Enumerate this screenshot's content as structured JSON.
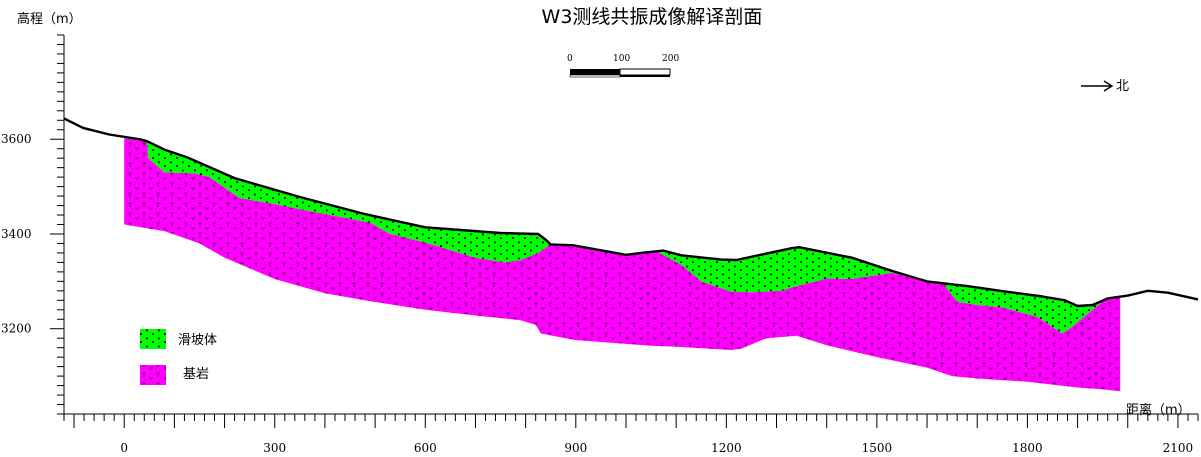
{
  "title": "W3测线共振成像解译剖面",
  "y_axis_label": "高程（m）",
  "x_axis_label": "距离（m）",
  "north_label": "北",
  "scale_bar": {
    "labels": [
      "0",
      "100",
      "200"
    ]
  },
  "legend": {
    "landslide_label": "滑坡体",
    "bedrock_label": "基岩",
    "landslide_color": "#00ff00",
    "bedrock_color": "#ff00ff"
  },
  "chart_data": {
    "type": "area",
    "title": "W3测线共振成像解译剖面",
    "xlabel": "距离（m）",
    "ylabel": "高程（m）",
    "xlim": [
      -120,
      2140
    ],
    "ylim": [
      3020,
      3820
    ],
    "x_ticks": [
      0,
      300,
      600,
      900,
      1200,
      1500,
      1800,
      2100
    ],
    "y_ticks": [
      3200,
      3400,
      3600
    ],
    "grid": false,
    "legend_position": "bottom-left",
    "colors": {
      "landslide": "#00ff00",
      "bedrock": "#ff00ff",
      "surface": "#000000"
    },
    "surface": [
      [
        -120,
        3644
      ],
      [
        -82,
        3624
      ],
      [
        -30,
        3610
      ],
      [
        30,
        3600
      ],
      [
        45,
        3596
      ],
      [
        80,
        3578
      ],
      [
        125,
        3562
      ],
      [
        220,
        3518
      ],
      [
        350,
        3478
      ],
      [
        480,
        3442
      ],
      [
        600,
        3414
      ],
      [
        750,
        3402
      ],
      [
        825,
        3400
      ],
      [
        840,
        3388
      ],
      [
        850,
        3378
      ],
      [
        895,
        3376
      ],
      [
        1000,
        3356
      ],
      [
        1030,
        3360
      ],
      [
        1075,
        3365
      ],
      [
        1110,
        3355
      ],
      [
        1190,
        3346
      ],
      [
        1220,
        3345
      ],
      [
        1330,
        3370
      ],
      [
        1345,
        3372
      ],
      [
        1450,
        3350
      ],
      [
        1530,
        3322
      ],
      [
        1600,
        3300
      ],
      [
        1680,
        3290
      ],
      [
        1760,
        3278
      ],
      [
        1830,
        3268
      ],
      [
        1875,
        3260
      ],
      [
        1900,
        3248
      ],
      [
        1930,
        3250
      ],
      [
        1960,
        3264
      ],
      [
        2000,
        3270
      ],
      [
        2040,
        3280
      ],
      [
        2080,
        3276
      ],
      [
        2140,
        3262
      ]
    ],
    "bedrock": [
      [
        0,
        3602
      ],
      [
        45,
        3596
      ],
      [
        48,
        3560
      ],
      [
        80,
        3530
      ],
      [
        140,
        3528
      ],
      [
        170,
        3520
      ],
      [
        230,
        3476
      ],
      [
        300,
        3463
      ],
      [
        360,
        3450
      ],
      [
        490,
        3424
      ],
      [
        530,
        3400
      ],
      [
        600,
        3382
      ],
      [
        700,
        3350
      ],
      [
        760,
        3340
      ],
      [
        790,
        3345
      ],
      [
        825,
        3360
      ],
      [
        850,
        3378
      ],
      [
        895,
        3376
      ],
      [
        1000,
        3356
      ],
      [
        1030,
        3360
      ],
      [
        1060,
        3364
      ],
      [
        1110,
        3335
      ],
      [
        1150,
        3300
      ],
      [
        1210,
        3278
      ],
      [
        1250,
        3277
      ],
      [
        1310,
        3280
      ],
      [
        1340,
        3290
      ],
      [
        1400,
        3306
      ],
      [
        1450,
        3305
      ],
      [
        1530,
        3318
      ],
      [
        1600,
        3300
      ],
      [
        1630,
        3298
      ],
      [
        1660,
        3257
      ],
      [
        1700,
        3250
      ],
      [
        1750,
        3245
      ],
      [
        1820,
        3225
      ],
      [
        1870,
        3190
      ],
      [
        1890,
        3205
      ],
      [
        1930,
        3240
      ],
      [
        1960,
        3266
      ],
      [
        1985,
        3270
      ],
      [
        1985,
        3068
      ],
      [
        1950,
        3072
      ],
      [
        1900,
        3076
      ],
      [
        1800,
        3088
      ],
      [
        1700,
        3095
      ],
      [
        1650,
        3100
      ],
      [
        1600,
        3118
      ],
      [
        1500,
        3140
      ],
      [
        1400,
        3165
      ],
      [
        1340,
        3185
      ],
      [
        1280,
        3180
      ],
      [
        1230,
        3158
      ],
      [
        1210,
        3155
      ],
      [
        1100,
        3162
      ],
      [
        1050,
        3164
      ],
      [
        1000,
        3168
      ],
      [
        900,
        3176
      ],
      [
        830,
        3190
      ],
      [
        820,
        3208
      ],
      [
        790,
        3218
      ],
      [
        700,
        3228
      ],
      [
        600,
        3240
      ],
      [
        490,
        3258
      ],
      [
        400,
        3275
      ],
      [
        300,
        3305
      ],
      [
        200,
        3350
      ],
      [
        150,
        3380
      ],
      [
        80,
        3406
      ],
      [
        0,
        3420
      ]
    ]
  }
}
